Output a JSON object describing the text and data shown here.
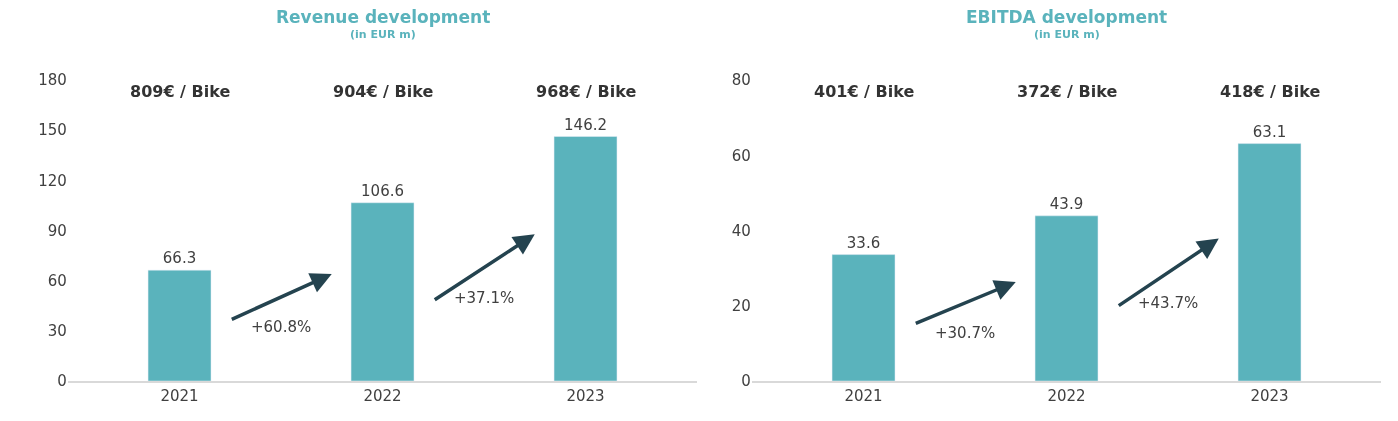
{
  "chart_data": [
    {
      "type": "bar",
      "title": "Revenue development",
      "subtitle": "(in EUR m)",
      "categories": [
        "2021",
        "2022",
        "2023"
      ],
      "values": [
        66.3,
        106.6,
        146.2
      ],
      "color": "#5ab3bc",
      "data_labels": true,
      "ylim": [
        0,
        180
      ],
      "yticks": [
        0,
        30,
        60,
        90,
        120,
        150,
        180
      ],
      "grid": false,
      "annotations": [
        "809€ / Bike",
        "904€ / Bike",
        "968€ / Bike",
        "+60.8%",
        "+37.1%"
      ]
    },
    {
      "type": "bar",
      "title": "EBITDA development",
      "subtitle": "(in EUR m)",
      "categories": [
        "2021",
        "2022",
        "2023"
      ],
      "values": [
        33.6,
        43.9,
        63.1
      ],
      "color": "#5ab3bc",
      "data_labels": true,
      "ylim": [
        0,
        80
      ],
      "yticks": [
        0,
        20,
        40,
        60,
        80
      ],
      "grid": false,
      "annotations": [
        "401€ / Bike",
        "372€ / Bike",
        "418€ / Bike",
        "+30.7%",
        "+43.7%"
      ]
    }
  ]
}
